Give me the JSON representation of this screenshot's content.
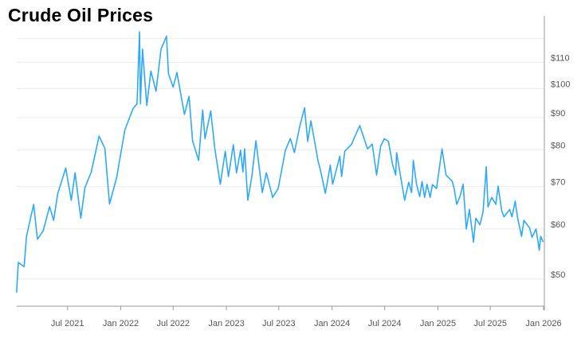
{
  "chart_data": {
    "type": "line",
    "title": "Crude Oil Prices",
    "xlabel": "",
    "ylabel": "",
    "y_scale": "log",
    "y_axis_side": "right",
    "xlim": [
      "2021-01-01",
      "2026-01-01"
    ],
    "ylim": [
      45.3,
      123.5
    ],
    "grid": true,
    "legend": "none",
    "line_color": "#2ea9f7",
    "x_ticks": [
      {
        "date": "2021-07-01",
        "label": "Jul 2021"
      },
      {
        "date": "2022-01-01",
        "label": "Jan 2022"
      },
      {
        "date": "2022-07-01",
        "label": "Jul 2022"
      },
      {
        "date": "2023-01-01",
        "label": "Jan 2023"
      },
      {
        "date": "2023-07-01",
        "label": "Jul 2023"
      },
      {
        "date": "2024-01-01",
        "label": "Jan 2024"
      },
      {
        "date": "2024-07-01",
        "label": "Jul 2024"
      },
      {
        "date": "2025-01-01",
        "label": "Jan 2025"
      },
      {
        "date": "2025-07-01",
        "label": "Jul 2025"
      },
      {
        "date": "2026-01-01",
        "label": "Jan 2026"
      }
    ],
    "y_ticks": [
      {
        "value": 50,
        "label": "$50"
      },
      {
        "value": 60,
        "label": "$60"
      },
      {
        "value": 70,
        "label": "$70"
      },
      {
        "value": 80,
        "label": "$80"
      },
      {
        "value": 90,
        "label": "$90"
      },
      {
        "value": 100,
        "label": "$100"
      },
      {
        "value": 110,
        "label": "$110"
      },
      {
        "value": 120,
        "label": ""
      }
    ],
    "series": [
      {
        "points": [
          [
            "2021-01-06",
            47.6
          ],
          [
            "2021-01-12",
            53.1
          ],
          [
            "2021-02-01",
            52.3
          ],
          [
            "2021-02-09",
            58.4
          ],
          [
            "2021-03-06",
            65.6
          ],
          [
            "2021-03-19",
            57.8
          ],
          [
            "2021-04-08",
            59.6
          ],
          [
            "2021-04-30",
            65.1
          ],
          [
            "2021-05-14",
            61.9
          ],
          [
            "2021-05-28",
            68.2
          ],
          [
            "2021-06-25",
            74.9
          ],
          [
            "2021-07-14",
            66.6
          ],
          [
            "2021-07-27",
            73.6
          ],
          [
            "2021-08-16",
            62.4
          ],
          [
            "2021-08-30",
            69.7
          ],
          [
            "2021-09-21",
            73.8
          ],
          [
            "2021-10-18",
            84.1
          ],
          [
            "2021-11-07",
            80.4
          ],
          [
            "2021-11-23",
            65.7
          ],
          [
            "2021-12-18",
            72.4
          ],
          [
            "2022-01-15",
            86.0
          ],
          [
            "2022-02-12",
            92.9
          ],
          [
            "2022-02-26",
            94.6
          ],
          [
            "2022-03-07",
            122.9
          ],
          [
            "2022-03-10",
            94.6
          ],
          [
            "2022-03-17",
            115.4
          ],
          [
            "2022-04-01",
            94.0
          ],
          [
            "2022-04-15",
            106.6
          ],
          [
            "2022-05-03",
            99.0
          ],
          [
            "2022-05-20",
            115.4
          ],
          [
            "2022-06-08",
            121.0
          ],
          [
            "2022-06-15",
            105.5
          ],
          [
            "2022-07-01",
            100.5
          ],
          [
            "2022-07-14",
            106.0
          ],
          [
            "2022-08-09",
            91.0
          ],
          [
            "2022-08-25",
            97.2
          ],
          [
            "2022-09-06",
            82.7
          ],
          [
            "2022-09-27",
            77.0
          ],
          [
            "2022-10-11",
            92.5
          ],
          [
            "2022-10-19",
            83.3
          ],
          [
            "2022-11-08",
            92.2
          ],
          [
            "2022-11-22",
            80.4
          ],
          [
            "2022-12-11",
            70.6
          ],
          [
            "2022-12-28",
            79.6
          ],
          [
            "2023-01-08",
            72.6
          ],
          [
            "2023-01-25",
            81.5
          ],
          [
            "2023-02-05",
            73.6
          ],
          [
            "2023-02-19",
            79.9
          ],
          [
            "2023-02-27",
            73.8
          ],
          [
            "2023-03-05",
            80.3
          ],
          [
            "2023-03-16",
            66.6
          ],
          [
            "2023-03-30",
            72.6
          ],
          [
            "2023-04-13",
            82.7
          ],
          [
            "2023-05-05",
            68.5
          ],
          [
            "2023-05-19",
            73.6
          ],
          [
            "2023-06-10",
            67.3
          ],
          [
            "2023-06-29",
            69.5
          ],
          [
            "2023-07-24",
            79.9
          ],
          [
            "2023-08-10",
            83.4
          ],
          [
            "2023-08-24",
            79.2
          ],
          [
            "2023-09-12",
            87.4
          ],
          [
            "2023-09-28",
            93.2
          ],
          [
            "2023-10-09",
            82.5
          ],
          [
            "2023-10-20",
            88.9
          ],
          [
            "2023-11-14",
            76.7
          ],
          [
            "2023-11-22",
            74.3
          ],
          [
            "2023-12-09",
            68.3
          ],
          [
            "2023-12-26",
            75.7
          ],
          [
            "2024-01-03",
            70.6
          ],
          [
            "2024-01-28",
            78.2
          ],
          [
            "2024-02-03",
            72.6
          ],
          [
            "2024-02-14",
            79.6
          ],
          [
            "2024-03-09",
            81.7
          ],
          [
            "2024-03-17",
            83.4
          ],
          [
            "2024-04-06",
            87.4
          ],
          [
            "2024-04-20",
            83.6
          ],
          [
            "2024-05-03",
            80.3
          ],
          [
            "2024-05-19",
            81.7
          ],
          [
            "2024-06-03",
            73.0
          ],
          [
            "2024-06-17",
            81.1
          ],
          [
            "2024-06-30",
            83.3
          ],
          [
            "2024-07-14",
            82.5
          ],
          [
            "2024-07-28",
            75.9
          ],
          [
            "2024-08-08",
            73.0
          ],
          [
            "2024-08-11",
            79.2
          ],
          [
            "2024-09-08",
            66.6
          ],
          [
            "2024-09-22",
            71.1
          ],
          [
            "2024-10-02",
            68.5
          ],
          [
            "2024-10-08",
            77.0
          ],
          [
            "2024-10-19",
            70.6
          ],
          [
            "2024-10-30",
            67.5
          ],
          [
            "2024-11-07",
            71.3
          ],
          [
            "2024-11-16",
            67.3
          ],
          [
            "2024-11-24",
            70.6
          ],
          [
            "2024-12-05",
            67.3
          ],
          [
            "2024-12-13",
            70.5
          ],
          [
            "2024-12-27",
            69.5
          ],
          [
            "2025-01-15",
            80.3
          ],
          [
            "2025-01-29",
            73.0
          ],
          [
            "2025-02-20",
            71.3
          ],
          [
            "2025-02-26",
            69.5
          ],
          [
            "2025-03-07",
            65.6
          ],
          [
            "2025-03-18",
            67.5
          ],
          [
            "2025-03-29",
            70.6
          ],
          [
            "2025-04-09",
            60.0
          ],
          [
            "2025-04-20",
            64.4
          ],
          [
            "2025-05-04",
            57.2
          ],
          [
            "2025-05-12",
            62.4
          ],
          [
            "2025-05-26",
            60.9
          ],
          [
            "2025-06-06",
            63.8
          ],
          [
            "2025-06-17",
            75.2
          ],
          [
            "2025-06-23",
            65.0
          ],
          [
            "2025-07-06",
            67.3
          ],
          [
            "2025-07-20",
            65.6
          ],
          [
            "2025-07-28",
            70.1
          ],
          [
            "2025-08-09",
            64.2
          ],
          [
            "2025-08-17",
            62.7
          ],
          [
            "2025-09-06",
            64.4
          ],
          [
            "2025-09-14",
            62.7
          ],
          [
            "2025-09-25",
            66.4
          ],
          [
            "2025-10-03",
            62.6
          ],
          [
            "2025-10-17",
            58.4
          ],
          [
            "2025-10-25",
            61.9
          ],
          [
            "2025-11-14",
            60.2
          ],
          [
            "2025-11-22",
            58.2
          ],
          [
            "2025-12-06",
            60.0
          ],
          [
            "2025-12-17",
            55.5
          ],
          [
            "2025-12-22",
            58.4
          ],
          [
            "2025-12-31",
            57.2
          ]
        ]
      }
    ]
  }
}
